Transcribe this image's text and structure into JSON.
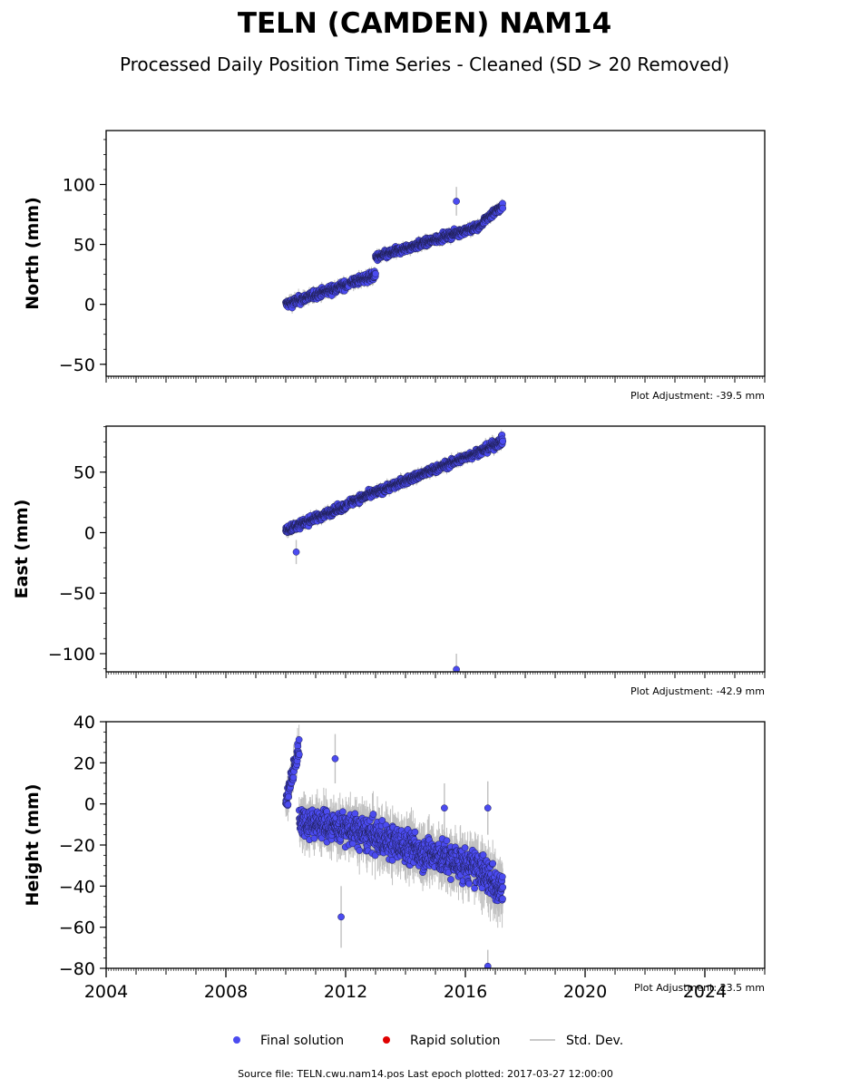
{
  "page": {
    "title": "TELN (CAMDEN) NAM14",
    "subtitle": "Processed Daily Position Time Series - Cleaned (SD > 20 Removed)",
    "footer": "Source file: TELN.cwu.nam14.pos  Last epoch plotted: 2017-03-27 12:00:00"
  },
  "legend": {
    "items": [
      {
        "label": "Final solution",
        "color": "#4b4bf0",
        "kind": "dot"
      },
      {
        "label": "Rapid solution",
        "color": "#e00000",
        "kind": "dot"
      },
      {
        "label": "Std. Dev.",
        "color": "#c8c8c8",
        "kind": "line"
      }
    ]
  },
  "colors": {
    "final": "#4b4bf0",
    "final_edge": "#1e1e50",
    "stddev": "#c0c0c0"
  },
  "chart_data": [
    {
      "type": "scatter",
      "ylabel": "North (mm)",
      "adjustment": "Plot Adjustment: -39.5 mm",
      "xlim": [
        2004,
        2026
      ],
      "ylim": [
        -60,
        145
      ],
      "yticks": [
        -50,
        0,
        50,
        100
      ],
      "xticklabels": [],
      "grid": false,
      "segments": [
        {
          "x0": 2010.0,
          "x1": 2012.1,
          "y0": 0,
          "y1": 17,
          "scatter": 4
        },
        {
          "x0": 2012.15,
          "x1": 2013.0,
          "y0": 18,
          "y1": 24,
          "scatter": 4
        },
        {
          "x0": 2013.0,
          "x1": 2016.6,
          "y0": 39,
          "y1": 66,
          "scatter": 3.5
        },
        {
          "x0": 2016.6,
          "x1": 2017.25,
          "y0": 70,
          "y1": 82,
          "scatter": 3.5
        }
      ],
      "outliers": [
        {
          "x": 2015.7,
          "y": 86,
          "sd": 12
        }
      ]
    },
    {
      "type": "scatter",
      "ylabel": "East (mm)",
      "adjustment": "Plot Adjustment: -42.9 mm",
      "xlim": [
        2004,
        2026
      ],
      "ylim": [
        -115,
        88
      ],
      "yticks": [
        -100,
        -50,
        0,
        50
      ],
      "xticklabels": [],
      "grid": false,
      "segments": [
        {
          "x0": 2010.0,
          "x1": 2012.1,
          "y0": 2,
          "y1": 23,
          "scatter": 3.5
        },
        {
          "x0": 2012.15,
          "x1": 2016.6,
          "y0": 25,
          "y1": 68,
          "scatter": 3.5
        },
        {
          "x0": 2016.6,
          "x1": 2017.25,
          "y0": 68,
          "y1": 76,
          "scatter": 4
        }
      ],
      "outliers": [
        {
          "x": 2010.35,
          "y": -16,
          "sd": 10
        },
        {
          "x": 2015.7,
          "y": -113,
          "sd": 13
        }
      ]
    },
    {
      "type": "scatter",
      "ylabel": "Height (mm)",
      "adjustment": "Plot Adjustment: 23.5 mm",
      "xlim": [
        2004,
        2026
      ],
      "ylim": [
        -80,
        40
      ],
      "yticks": [
        -80,
        -60,
        -40,
        -20,
        0,
        20,
        40
      ],
      "xticks": [
        2004,
        2008,
        2012,
        2016,
        2020,
        2024
      ],
      "xticklabels": [
        "2004",
        "2008",
        "2012",
        "2016",
        "2020",
        "2024"
      ],
      "grid": false,
      "segments": [
        {
          "x0": 2010.0,
          "x1": 2010.45,
          "y0": 0,
          "y1": 28,
          "scatter": 6
        },
        {
          "x0": 2010.45,
          "x1": 2012.1,
          "y0": -8,
          "y1": -12,
          "scatter": 8
        },
        {
          "x0": 2012.1,
          "x1": 2016.5,
          "y0": -12,
          "y1": -32,
          "scatter": 9
        },
        {
          "x0": 2016.5,
          "x1": 2017.25,
          "y0": -32,
          "y1": -42,
          "scatter": 10
        }
      ],
      "outliers": [
        {
          "x": 2011.65,
          "y": 22,
          "sd": 12
        },
        {
          "x": 2011.85,
          "y": -55,
          "sd": 15
        },
        {
          "x": 2015.3,
          "y": -2,
          "sd": 12
        },
        {
          "x": 2016.75,
          "y": -2,
          "sd": 13
        },
        {
          "x": 2016.75,
          "y": -79,
          "sd": 8
        }
      ]
    }
  ]
}
